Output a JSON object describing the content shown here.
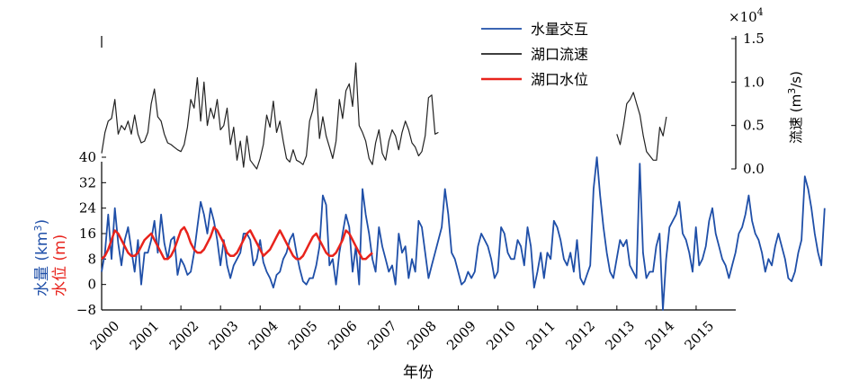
{
  "chart_data": {
    "type": "line",
    "xlabel": "年份",
    "x_ticks": [
      "2000",
      "2001",
      "2002",
      "2003",
      "2004",
      "2005",
      "2006",
      "2007",
      "2008",
      "2009",
      "2010",
      "2011",
      "2012",
      "2013",
      "2014",
      "2015"
    ],
    "xlim": [
      2000,
      2016
    ],
    "left_axis": {
      "label_part1": "水量 (km",
      "label_sup": "3",
      "label_part2": ")",
      "label2": "水位 (m)",
      "ticks": [
        "40",
        "32",
        "24",
        "16",
        "8",
        "0",
        "−8"
      ],
      "ylim": [
        -8,
        40
      ]
    },
    "right_axis": {
      "label_part1": "流速 (m",
      "label_sup": "3",
      "label_part2": "/s)",
      "multiplier_base": "×10",
      "multiplier_exp": "4",
      "ticks": [
        "0.0",
        "0.5",
        "1.0",
        "1.5"
      ],
      "ylim": [
        -1.6,
        1.5
      ]
    },
    "legend": [
      {
        "name": "水量交互",
        "color": "#1f4fa8"
      },
      {
        "name": "湖口流速",
        "color": "#222222"
      },
      {
        "name": "湖口水位",
        "color": "#e8231c"
      }
    ],
    "series": [
      {
        "name": "水量交互",
        "color": "#1f4fa8",
        "axis": "left",
        "x_start": 2000.0,
        "x_step": 0.0833,
        "values": [
          4,
          10,
          22,
          8,
          24,
          13,
          6,
          14,
          18,
          11,
          4,
          14,
          0,
          10,
          10,
          14,
          20,
          10,
          22,
          13,
          8,
          14,
          15,
          3,
          8,
          6,
          3,
          4,
          10,
          18,
          26,
          22,
          16,
          24,
          20,
          14,
          6,
          14,
          6,
          2,
          6,
          8,
          10,
          16,
          16,
          14,
          6,
          8,
          14,
          7,
          4,
          2,
          -1,
          3,
          4,
          8,
          10,
          14,
          16,
          10,
          5,
          1,
          0,
          2,
          2,
          6,
          12,
          28,
          25,
          6,
          8,
          0,
          10,
          16,
          22,
          18,
          4,
          12,
          0,
          30,
          22,
          16,
          8,
          4,
          18,
          12,
          8,
          4,
          6,
          0,
          16,
          10,
          12,
          2,
          8,
          4,
          20,
          18,
          10,
          2,
          6,
          10,
          14,
          18,
          30,
          22,
          10,
          8,
          4,
          0,
          1,
          4,
          2,
          4,
          12,
          16,
          14,
          12,
          8,
          2,
          4,
          18,
          16,
          10,
          8,
          8,
          14,
          12,
          6,
          18,
          12,
          -1,
          4,
          10,
          2,
          10,
          8,
          20,
          18,
          14,
          8,
          6,
          10,
          4,
          14,
          2,
          0,
          3,
          6,
          30,
          40,
          28,
          18,
          10,
          4,
          2,
          8,
          14,
          12,
          14,
          6,
          4,
          2,
          38,
          10,
          2,
          4,
          4,
          12,
          16,
          -8,
          8,
          18,
          20,
          22,
          26,
          16,
          14,
          10,
          4,
          18,
          6,
          8,
          12,
          20,
          24,
          16,
          12,
          8,
          6,
          2,
          6,
          10,
          16,
          18,
          22,
          28,
          20,
          16,
          14,
          10,
          4,
          8,
          6,
          12,
          16,
          12,
          8,
          2,
          1,
          4,
          10,
          14,
          34,
          30,
          24,
          16,
          10,
          6,
          24
        ]
      },
      {
        "name": "湖口流速",
        "color": "#222222",
        "axis": "right",
        "segments": [
          {
            "x_start": 2000.0,
            "x_step": 0.0833,
            "values": [
              0.18,
              0.42,
              0.55,
              0.58,
              0.8,
              0.4,
              0.5,
              0.45,
              0.55,
              0.4,
              0.62,
              0.4,
              0.3,
              0.32,
              0.42,
              0.75,
              0.92,
              0.6,
              0.55,
              0.4,
              0.3,
              0.28,
              0.25,
              0.22,
              0.2,
              0.28,
              0.48,
              0.8,
              0.7,
              1.05,
              0.55,
              1.0,
              0.5,
              0.7,
              0.58,
              0.8,
              0.45,
              0.5,
              0.7,
              0.28,
              0.48,
              0.1,
              0.32,
              0.02,
              0.38,
              0.1,
              0.05,
              0.0,
              0.12,
              0.28,
              0.62,
              0.48,
              0.78,
              0.42,
              0.55,
              0.32,
              0.12,
              0.08,
              0.22,
              0.1,
              0.08,
              0.05,
              0.15,
              0.55,
              0.68,
              0.92,
              0.35,
              0.6,
              0.38,
              0.25,
              0.12,
              0.32,
              0.8,
              0.58,
              0.9,
              0.98,
              0.72,
              1.22,
              0.5,
              0.42,
              0.32,
              0.12,
              0.05,
              0.3,
              0.45,
              0.18,
              0.1,
              0.32,
              0.45,
              0.38,
              0.22,
              0.42,
              0.55,
              0.45,
              0.3,
              0.25,
              0.15,
              0.2,
              0.38,
              0.82,
              0.85,
              0.4,
              0.42
            ]
          },
          {
            "x_start": 2013.0,
            "x_step": 0.0833,
            "values": [
              0.4,
              0.28,
              0.5,
              0.75,
              0.8,
              0.88,
              0.75,
              0.62,
              0.38,
              0.2,
              0.15,
              0.1,
              0.1,
              0.48,
              0.38,
              0.6
            ]
          }
        ]
      },
      {
        "name": "湖口水位",
        "color": "#e8231c",
        "axis": "left",
        "x_start": 2000.0,
        "x_step": 0.0833,
        "values": [
          8,
          9,
          11,
          14,
          17,
          16,
          14,
          12,
          10,
          9,
          9,
          10,
          12,
          14,
          15,
          16,
          14,
          12,
          10,
          8,
          8,
          9,
          11,
          14,
          17,
          18,
          16,
          13,
          11,
          10,
          10,
          11,
          13,
          15,
          18,
          17,
          15,
          13,
          10,
          9,
          9,
          10,
          12,
          14,
          16,
          17,
          15,
          13,
          11,
          9,
          10,
          11,
          13,
          15,
          17,
          15,
          13,
          11,
          9,
          8,
          8,
          9,
          11,
          13,
          15,
          16,
          14,
          12,
          10,
          9,
          9,
          10,
          12,
          14,
          17,
          16,
          14,
          12,
          10,
          8,
          8,
          9,
          10
        ]
      }
    ]
  }
}
